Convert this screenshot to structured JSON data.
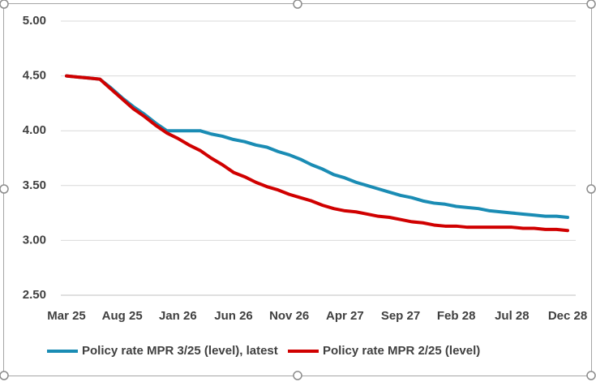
{
  "chart_data": {
    "type": "line",
    "categories": [
      "Mar 25",
      null,
      null,
      null,
      null,
      "Aug 25",
      null,
      null,
      null,
      null,
      "Jan 26",
      null,
      null,
      null,
      null,
      "Jun 26",
      null,
      null,
      null,
      null,
      "Nov 26",
      null,
      null,
      null,
      null,
      "Apr 27",
      null,
      null,
      null,
      null,
      "Sep 27",
      null,
      null,
      null,
      null,
      "Feb 28",
      null,
      null,
      null,
      null,
      "Jul 28",
      null,
      null,
      null,
      null,
      "Dec 28"
    ],
    "series": [
      {
        "name": "Policy rate MPR  3/25 (level), latest",
        "color": "#1a8cb4",
        "values": [
          4.5,
          4.49,
          4.48,
          4.47,
          4.39,
          4.3,
          4.22,
          4.15,
          4.07,
          4.0,
          4.0,
          4.0,
          4.0,
          3.97,
          3.95,
          3.92,
          3.9,
          3.87,
          3.85,
          3.81,
          3.78,
          3.74,
          3.69,
          3.65,
          3.6,
          3.57,
          3.53,
          3.5,
          3.47,
          3.44,
          3.41,
          3.39,
          3.36,
          3.34,
          3.33,
          3.31,
          3.3,
          3.29,
          3.27,
          3.26,
          3.25,
          3.24,
          3.23,
          3.22,
          3.22,
          3.21
        ]
      },
      {
        "name": "Policy rate MPR  2/25 (level)",
        "color": "#d00000",
        "values": [
          4.5,
          4.49,
          4.48,
          4.47,
          4.38,
          4.29,
          4.2,
          4.13,
          4.05,
          3.98,
          3.93,
          3.87,
          3.82,
          3.75,
          3.69,
          3.62,
          3.58,
          3.53,
          3.49,
          3.46,
          3.42,
          3.39,
          3.36,
          3.32,
          3.29,
          3.27,
          3.26,
          3.24,
          3.22,
          3.21,
          3.19,
          3.17,
          3.16,
          3.14,
          3.13,
          3.13,
          3.12,
          3.12,
          3.12,
          3.12,
          3.12,
          3.11,
          3.11,
          3.1,
          3.1,
          3.09
        ]
      }
    ],
    "ylim": [
      2.5,
      5
    ],
    "yticks": [
      {
        "value": 2.5,
        "label": "2.50"
      },
      {
        "value": 3,
        "label": "3.00"
      },
      {
        "value": 3.5,
        "label": "3.50"
      },
      {
        "value": 4,
        "label": "4.00"
      },
      {
        "value": 4.5,
        "label": "4.50"
      },
      {
        "value": 5,
        "label": "5.00"
      }
    ],
    "grid": true,
    "legend": "bottom"
  }
}
